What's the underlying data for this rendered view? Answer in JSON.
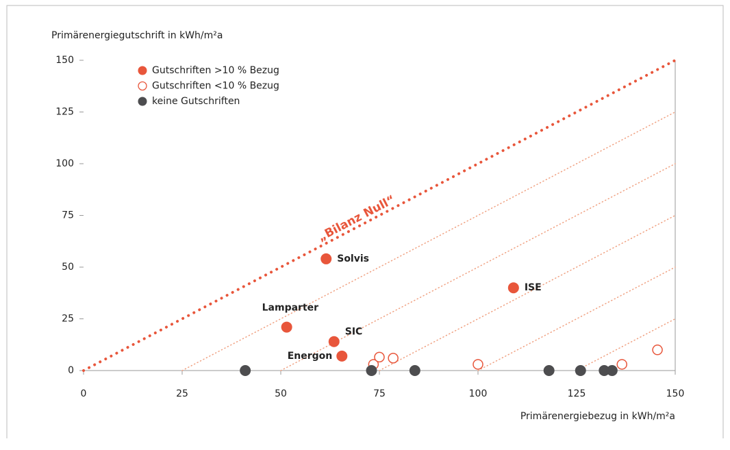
{
  "chart_data": {
    "type": "scatter",
    "y_label": "Primärenergiegutschrift in kWh/m²a",
    "x_label": "Primärenergiebezug in kWh/m²a",
    "xlim": [
      0,
      150
    ],
    "ylim": [
      0,
      150
    ],
    "xticks": [
      0,
      25,
      50,
      75,
      100,
      125,
      150
    ],
    "yticks": [
      0,
      25,
      50,
      75,
      100,
      125,
      150
    ],
    "balance_line": {
      "label": "„Bilanz Null“",
      "offset": 0,
      "color": "#e8563b"
    },
    "diagonal_offsets": [
      25,
      50,
      75,
      100,
      125
    ],
    "diagonal_color": "#f0a080",
    "series": [
      {
        "name": "Gutschriften >10 % Bezug",
        "color": "#e8563b",
        "filled": true,
        "x": [
          61.5,
          109,
          51.5,
          63.5,
          65.5
        ],
        "values": [
          54,
          40,
          21,
          14,
          7
        ],
        "labels": [
          "Solvis",
          "ISE",
          "Lamparter",
          "SIC",
          "Energon"
        ]
      },
      {
        "name": "Gutschriften <10 % Bezug",
        "color": "#e8563b",
        "filled": false,
        "x": [
          73.5,
          75,
          78.5,
          100,
          136.5,
          145.5
        ],
        "values": [
          3,
          6.5,
          6,
          3,
          3,
          10
        ]
      },
      {
        "name": "keine Gutschriften",
        "color": "#4d4d4f",
        "filled": true,
        "x": [
          41,
          73,
          84,
          118,
          126,
          132,
          134
        ],
        "values": [
          0,
          0,
          0,
          0,
          0,
          0,
          0
        ]
      }
    ]
  }
}
